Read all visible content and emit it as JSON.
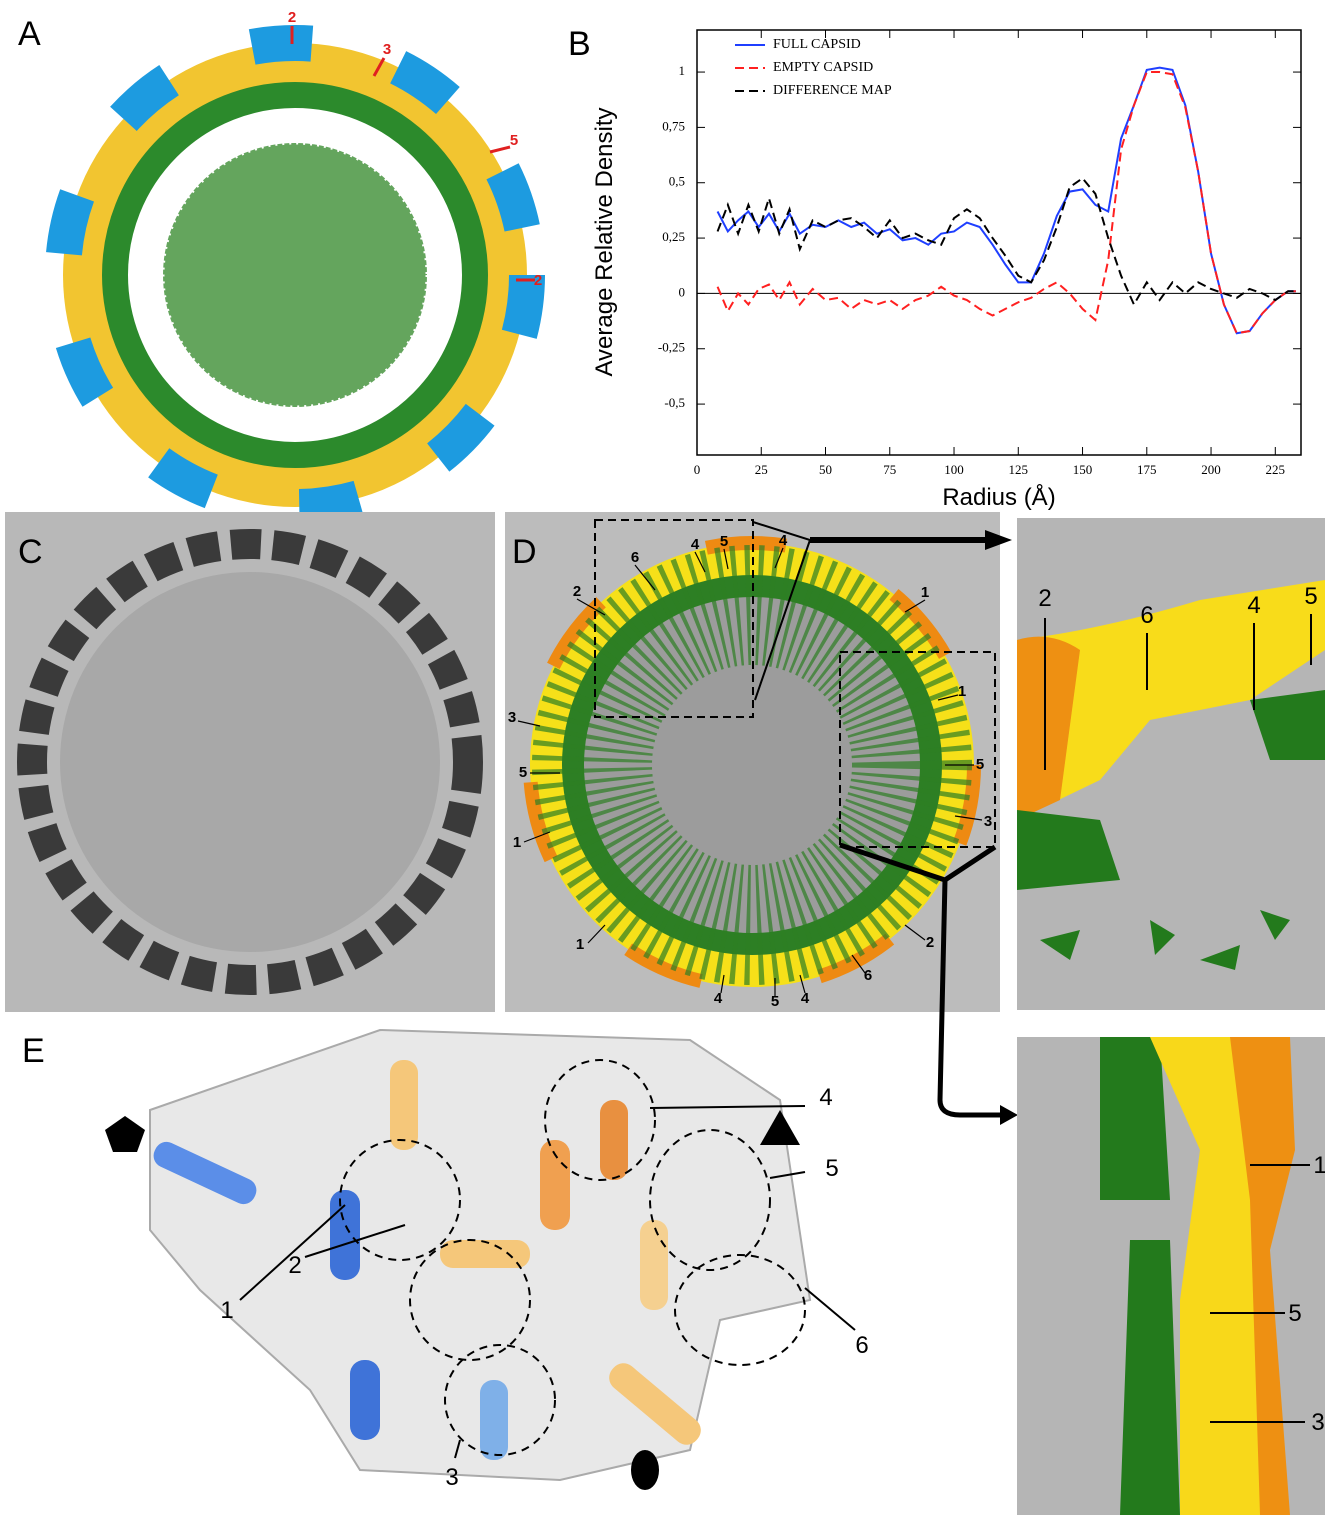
{
  "panel_labels": [
    "A",
    "B",
    "C",
    "D",
    "E"
  ],
  "panel_a": {
    "markers": [
      "2",
      "3",
      "5",
      "2"
    ]
  },
  "panel_d": {
    "markers": [
      "4",
      "5",
      "4",
      "6",
      "2",
      "1",
      "1",
      "3",
      "5",
      "5",
      "3",
      "1",
      "1",
      "2",
      "6",
      "4",
      "5",
      "4"
    ]
  },
  "zoom_top": {
    "markers": [
      "2",
      "6",
      "4",
      "5"
    ]
  },
  "zoom_bottom": {
    "markers": [
      "1",
      "5",
      "3"
    ]
  },
  "panel_e": {
    "markers": [
      "1",
      "2",
      "3",
      "4",
      "5",
      "6"
    ]
  },
  "chart_data": {
    "type": "line",
    "xlabel": "Radius (Å)",
    "ylabel": "Average Relative Density",
    "x": [
      8,
      12,
      16,
      20,
      24,
      28,
      32,
      36,
      40,
      45,
      50,
      55,
      60,
      65,
      70,
      75,
      80,
      85,
      90,
      95,
      100,
      105,
      110,
      115,
      120,
      125,
      130,
      135,
      140,
      145,
      150,
      155,
      160,
      165,
      170,
      175,
      180,
      185,
      190,
      195,
      200,
      205,
      210,
      215,
      220,
      225,
      230,
      233
    ],
    "series": [
      {
        "name": "FULL CAPSID",
        "color": "#1f3fff",
        "dashed": false,
        "values": [
          0.37,
          0.28,
          0.33,
          0.37,
          0.3,
          0.36,
          0.28,
          0.36,
          0.27,
          0.31,
          0.3,
          0.33,
          0.3,
          0.32,
          0.27,
          0.29,
          0.24,
          0.25,
          0.22,
          0.27,
          0.28,
          0.32,
          0.3,
          0.22,
          0.13,
          0.05,
          0.05,
          0.18,
          0.35,
          0.46,
          0.47,
          0.4,
          0.37,
          0.7,
          0.85,
          1.01,
          1.02,
          1.01,
          0.85,
          0.55,
          0.18,
          -0.05,
          -0.18,
          -0.17,
          -0.09,
          -0.03,
          0.01,
          0.01
        ]
      },
      {
        "name": "EMPTY CAPSID",
        "color": "#ff2020",
        "dashed": true,
        "values": [
          0.03,
          -0.08,
          0.0,
          -0.05,
          0.02,
          0.04,
          -0.03,
          0.05,
          -0.05,
          0.02,
          -0.03,
          -0.02,
          -0.07,
          -0.03,
          -0.05,
          -0.03,
          -0.07,
          -0.03,
          -0.01,
          0.03,
          -0.01,
          -0.03,
          -0.07,
          -0.1,
          -0.07,
          -0.04,
          -0.02,
          0.02,
          0.05,
          0.0,
          -0.07,
          -0.12,
          0.15,
          0.65,
          0.85,
          1.0,
          1.0,
          0.99,
          0.84,
          0.55,
          0.18,
          -0.05,
          -0.18,
          -0.17,
          -0.09,
          -0.03,
          0.01,
          0.01
        ]
      },
      {
        "name": "DIFFERENCE MAP",
        "color": "#000000",
        "dashed": true,
        "values": [
          0.28,
          0.4,
          0.27,
          0.4,
          0.28,
          0.43,
          0.27,
          0.38,
          0.2,
          0.33,
          0.3,
          0.33,
          0.34,
          0.3,
          0.25,
          0.33,
          0.25,
          0.27,
          0.24,
          0.22,
          0.34,
          0.38,
          0.34,
          0.25,
          0.17,
          0.08,
          0.05,
          0.15,
          0.3,
          0.48,
          0.52,
          0.45,
          0.25,
          0.08,
          -0.05,
          0.05,
          -0.03,
          0.05,
          0.0,
          0.05,
          0.02,
          0.0,
          -0.02,
          0.02,
          0.0,
          -0.03,
          0.01,
          0.01
        ]
      }
    ],
    "xlim": [
      0,
      235
    ],
    "xticks": [
      0,
      25,
      50,
      75,
      100,
      125,
      150,
      175,
      200,
      225
    ],
    "ylim": [
      -0.73,
      1.19
    ],
    "yticks": [
      {
        "value": -0.5,
        "label": "-0,5"
      },
      {
        "value": -0.25,
        "label": "-0,25"
      },
      0,
      {
        "value": 0.25,
        "label": "0,25"
      },
      {
        "value": 0.5,
        "label": "0,5"
      },
      {
        "value": 0.75,
        "label": "0,75"
      },
      1
    ],
    "zero_line": true
  }
}
